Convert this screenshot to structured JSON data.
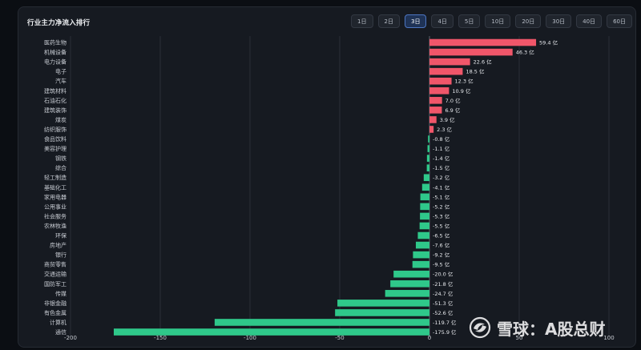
{
  "header": {
    "title": "行业主力净流入排行"
  },
  "tabs": [
    {
      "label": "1日",
      "active": false
    },
    {
      "label": "2日",
      "active": false
    },
    {
      "label": "3日",
      "active": true
    },
    {
      "label": "4日",
      "active": false
    },
    {
      "label": "5日",
      "active": false
    },
    {
      "label": "10日",
      "active": false
    },
    {
      "label": "20日",
      "active": false
    },
    {
      "label": "30日",
      "active": false
    },
    {
      "label": "40日",
      "active": false
    },
    {
      "label": "60日",
      "active": false
    }
  ],
  "watermark": {
    "text": "雪球：A股总财",
    "icon": "snowball-logo-icon"
  },
  "chart_data": {
    "type": "bar",
    "orientation": "horizontal",
    "title": "行业主力净流入排行",
    "unit_suffix": " 亿",
    "categories": [
      "医药生物",
      "机械设备",
      "电力设备",
      "电子",
      "汽车",
      "建筑材料",
      "石油石化",
      "建筑装饰",
      "煤炭",
      "纺织服饰",
      "食品饮料",
      "美容护理",
      "钢铁",
      "综合",
      "轻工制造",
      "基础化工",
      "家用电器",
      "公用事业",
      "社会服务",
      "农林牧渔",
      "环保",
      "房地产",
      "银行",
      "商贸零售",
      "交通运输",
      "国防军工",
      "传媒",
      "非银金融",
      "有色金属",
      "计算机",
      "通信"
    ],
    "values": [
      59.4,
      46.3,
      22.6,
      18.5,
      12.3,
      10.9,
      7.0,
      6.9,
      3.9,
      2.3,
      -0.8,
      -1.1,
      -1.4,
      -1.5,
      -3.2,
      -4.1,
      -5.1,
      -5.2,
      -5.3,
      -5.5,
      -6.5,
      -7.6,
      -9.2,
      -9.5,
      -20.0,
      -21.8,
      -24.7,
      -51.3,
      -52.6,
      -119.7,
      -175.9
    ],
    "xlim": [
      -200,
      100
    ],
    "xticks": [
      -200,
      -150,
      -100,
      -50,
      0,
      50,
      100
    ],
    "grid": "vertical",
    "colors": {
      "positive": "#f0566a",
      "negative": "#2fc88a",
      "grid": "#2a2f37",
      "axis": "#5b616b",
      "text": "#c8ccd3"
    }
  }
}
